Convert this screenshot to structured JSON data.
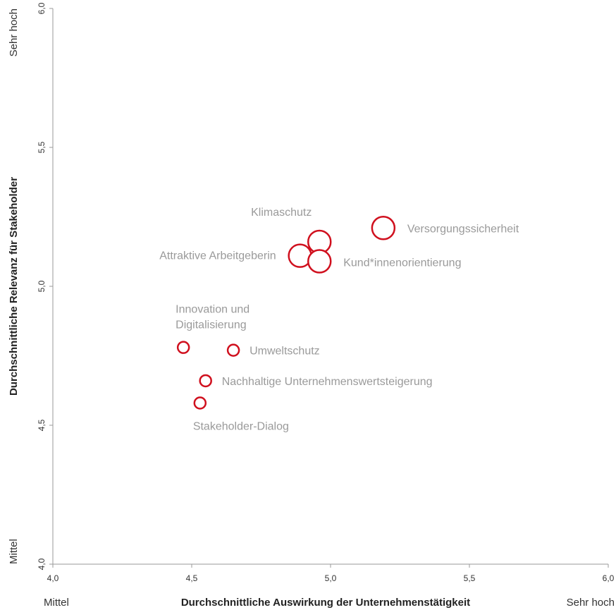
{
  "chart_data": {
    "type": "scatter",
    "title": "",
    "xlabel": "Durchschnittliche Auswirkung der Unternehmenstätigkeit",
    "ylabel": "Durchschnittliche Relevanz für Stakeholder",
    "xlim": [
      4.0,
      6.0
    ],
    "ylim": [
      4.0,
      6.0
    ],
    "x_ticks": [
      "4,0",
      "4,5",
      "5,0",
      "5,5",
      "6,0"
    ],
    "y_ticks": [
      "4,0",
      "4,5",
      "5,0",
      "5,5",
      "6,0"
    ],
    "x_low_label": "Mittel",
    "x_high_label": "Sehr hoch",
    "y_low_label": "Mittel",
    "y_high_label": "Sehr hoch",
    "grid": false,
    "marker_color": "#d0101e",
    "points": [
      {
        "name": "Versorgungssicherheit",
        "x": 5.19,
        "y": 5.21,
        "size": "large"
      },
      {
        "name": "Klimaschutz",
        "x": 4.96,
        "y": 5.16,
        "size": "large"
      },
      {
        "name": "Attraktive Arbeitgeberin",
        "x": 4.89,
        "y": 5.11,
        "size": "large"
      },
      {
        "name": "Kund*innenorientierung",
        "x": 4.96,
        "y": 5.09,
        "size": "large"
      },
      {
        "name": "Innovation und Digitalisierung",
        "x": 4.47,
        "y": 4.78,
        "size": "small"
      },
      {
        "name": "Umweltschutz",
        "x": 4.65,
        "y": 4.77,
        "size": "small"
      },
      {
        "name": "Nachhaltige Unternehmenswertsteigerung",
        "x": 4.55,
        "y": 4.66,
        "size": "small"
      },
      {
        "name": "Stakeholder-Dialog",
        "x": 4.53,
        "y": 4.58,
        "size": "small"
      }
    ]
  }
}
